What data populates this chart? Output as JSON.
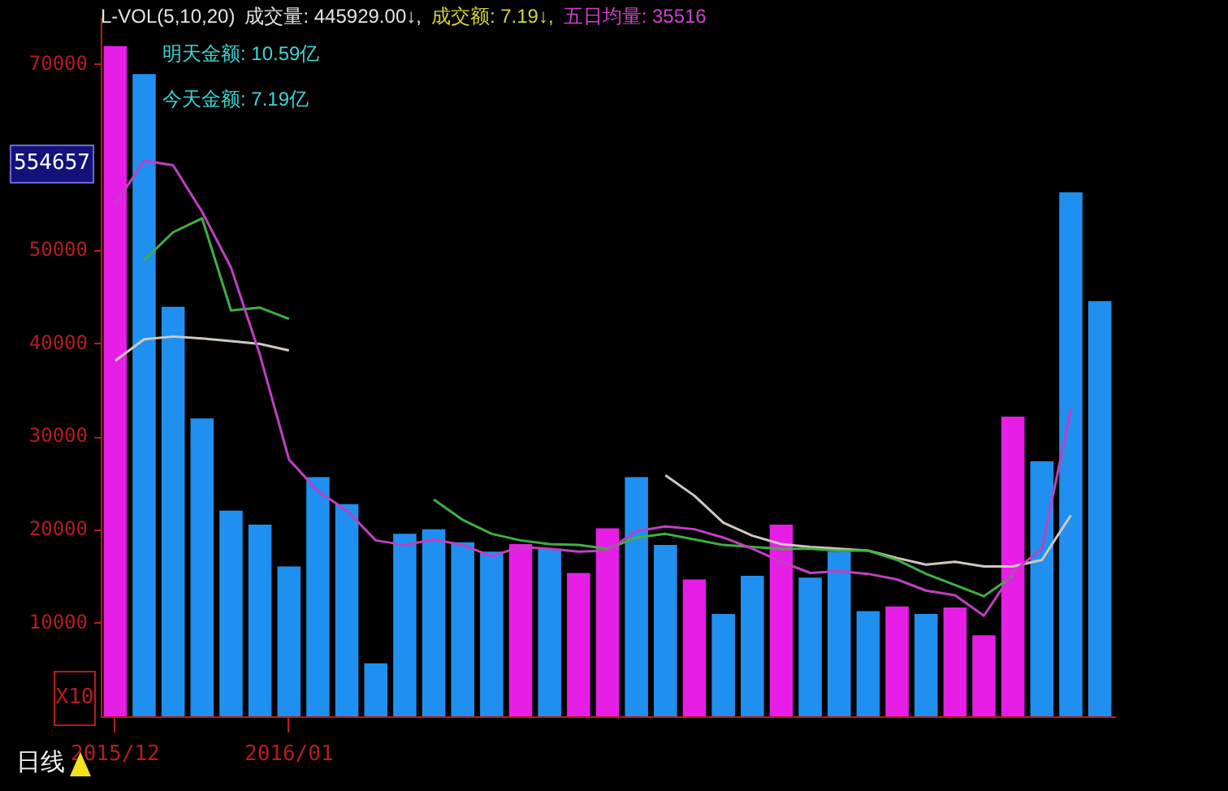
{
  "chart_data": {
    "type": "bar",
    "annotations": [
      "L-VOL(5,10,20)",
      "成交量: 445929.00↓,",
      "成交额: 7.19↓,",
      "五日均量: 35516",
      "明天金额: 10.59亿",
      "今天金额: 7.19亿",
      "X10",
      "554657",
      "日线"
    ],
    "categories": [
      "2015/12",
      null,
      null,
      null,
      null,
      null,
      "2016/01",
      null,
      null,
      null,
      null,
      null,
      null,
      null,
      null,
      null,
      null,
      null,
      null,
      null,
      null,
      null,
      null,
      null,
      null,
      null,
      null,
      null,
      null,
      null,
      null,
      null,
      null,
      null,
      null
    ],
    "series": [
      {
        "colors": [
          "#e61ee6",
          "#2090f0",
          "#2090f0",
          "#2090f0",
          "#2090f0",
          "#2090f0",
          "#2090f0",
          "#2090f0",
          "#2090f0",
          "#2090f0",
          "#2090f0",
          "#2090f0",
          "#2090f0",
          "#2090f0",
          "#e61ee6",
          "#2090f0",
          "#e61ee6",
          "#e61ee6",
          "#2090f0",
          "#2090f0",
          "#e61ee6",
          "#2090f0",
          "#2090f0",
          "#e61ee6",
          "#2090f0",
          "#2090f0",
          "#2090f0",
          "#e61ee6",
          "#2090f0",
          "#e61ee6",
          "#e61ee6",
          "#e61ee6",
          "#2090f0",
          "#2090f0",
          "#2090f0"
        ],
        "values": [
          72000,
          69000,
          44000,
          32000,
          22100,
          20600,
          16100,
          25700,
          22800,
          5700,
          19600,
          20100,
          18700,
          17700,
          18500,
          18000,
          15400,
          20200,
          25700,
          18400,
          14700,
          11000,
          15100,
          20600,
          14900,
          17700,
          11300,
          11800,
          11000,
          11700,
          8700,
          32200,
          27400,
          56300,
          44600
        ]
      },
      {
        "type": "line",
        "color": "#c040c0",
        "values": [
          55000,
          59700,
          59200,
          54200,
          48200,
          38800,
          27600,
          24200,
          22100,
          18900,
          18400,
          19000,
          18400,
          17200,
          18200,
          18000,
          17700,
          17800,
          19900,
          20400,
          20100,
          19200,
          18000,
          16600,
          15400,
          15600,
          15300,
          14700,
          13500,
          13000,
          10800,
          15500,
          18000,
          33000,
          null
        ]
      },
      {
        "type": "line",
        "color": "#40b040",
        "values": [
          null,
          49000,
          52000,
          53500,
          43600,
          43900,
          42700,
          null,
          null,
          null,
          null,
          23300,
          21100,
          19600,
          18900,
          18500,
          18400,
          18000,
          19200,
          19600,
          19000,
          18400,
          18200,
          18000,
          18000,
          17800,
          17800,
          16800,
          15300,
          14100,
          12900,
          15100,
          null,
          null,
          null
        ]
      },
      {
        "type": "line",
        "color": "#d0c8c0",
        "values": [
          38200,
          40500,
          40800,
          40600,
          40300,
          40000,
          39300,
          null,
          null,
          null,
          null,
          null,
          null,
          null,
          null,
          null,
          null,
          null,
          null,
          25900,
          23700,
          20800,
          19400,
          18500,
          18200,
          18000,
          17800,
          17000,
          16300,
          16600,
          16100,
          16100,
          16800,
          21600,
          null
        ]
      }
    ],
    "ylim": [
      0,
      75000
    ],
    "yticks": [
      10000,
      20000,
      30000,
      40000,
      50000,
      70000
    ]
  }
}
